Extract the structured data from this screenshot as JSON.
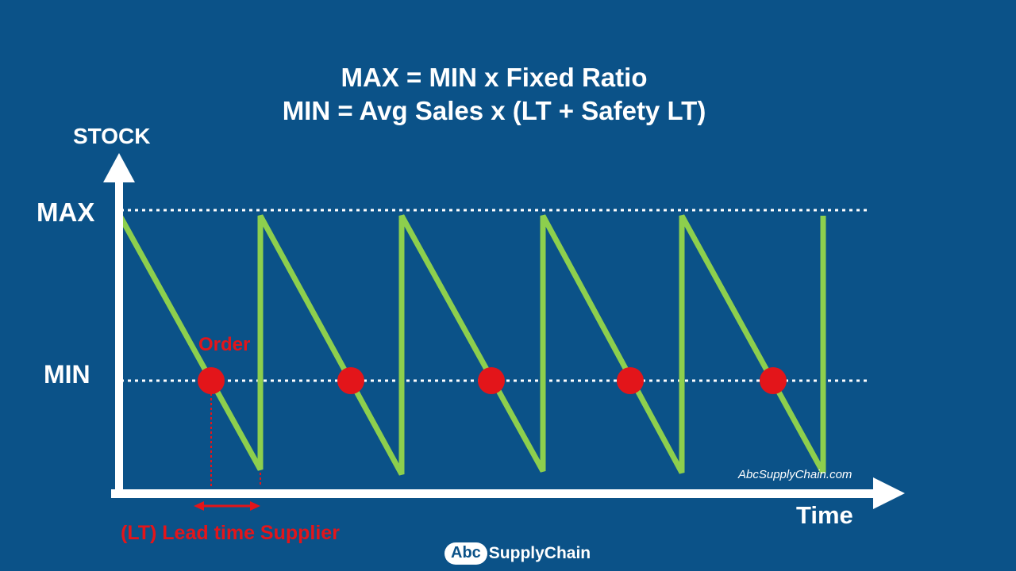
{
  "title": {
    "line1": "MAX = MIN x Fixed Ratio",
    "line2": "MIN = Avg Sales x (LT + Safety LT)"
  },
  "axes": {
    "y_title": "STOCK",
    "x_title": "Time"
  },
  "levels": {
    "max_label": "MAX",
    "min_label": "MIN"
  },
  "annotations": {
    "order": "Order",
    "lead_time": "(LT) Lead time Supplier"
  },
  "watermark": "AbcSupplyChain.com",
  "brand": {
    "abc": "Abc",
    "name": "SupplyChain"
  },
  "colors": {
    "background": "#0b5288",
    "stock_line": "#8dcf4d",
    "order_point": "#e3151a",
    "axis": "#ffffff"
  },
  "cycles": 5
}
